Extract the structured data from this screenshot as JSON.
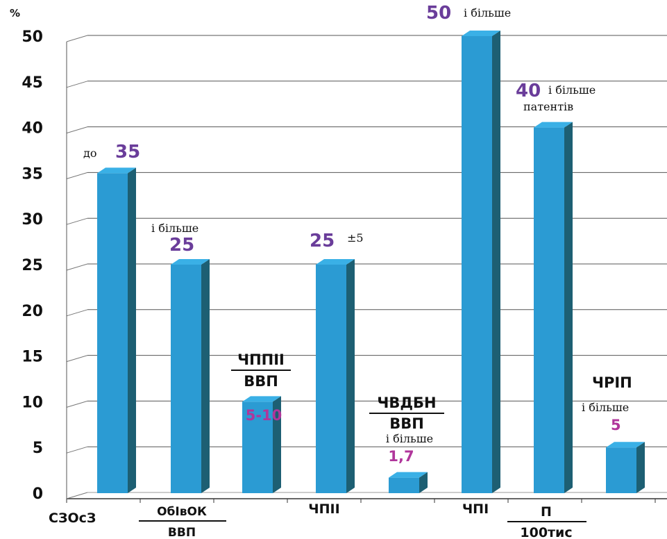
{
  "chart_data": {
    "type": "bar",
    "ylabel": "%",
    "ylim": [
      0,
      50
    ],
    "yticks": [
      0,
      5,
      10,
      15,
      20,
      25,
      30,
      35,
      40,
      45,
      50
    ],
    "grid": true,
    "bar_color": "#2b9bd3",
    "bar_side_color": "#1d5f73",
    "bar_top_color": "#3ab0e6",
    "value_label_color": "#6a3d9a",
    "values": [
      35,
      25,
      10,
      25,
      1.7,
      50,
      40,
      5
    ],
    "value_labels": [
      "35",
      "25",
      "5-10",
      "25",
      "1,7",
      "50",
      "40",
      "5"
    ],
    "value_prefix": [
      "до",
      "",
      "",
      "",
      "",
      "",
      "",
      ""
    ],
    "value_suffix": [
      "",
      "",
      "",
      "±5",
      "",
      "і більше",
      "і більше",
      ""
    ],
    "value_notes": [
      "",
      "і більше",
      "",
      "",
      "і більше",
      "",
      "патентів",
      "і більше"
    ],
    "bar_titles": [
      "",
      "",
      "ЧППІІ|ВВП",
      "",
      "ЧВДБН|ВВП",
      "",
      "",
      "ЧРІП"
    ],
    "categories": [
      "СЗОсЗ",
      "ОбІвОК|ВВП",
      "",
      "ЧПІІ",
      "",
      "ЧПІ",
      "П|100тис",
      ""
    ]
  }
}
